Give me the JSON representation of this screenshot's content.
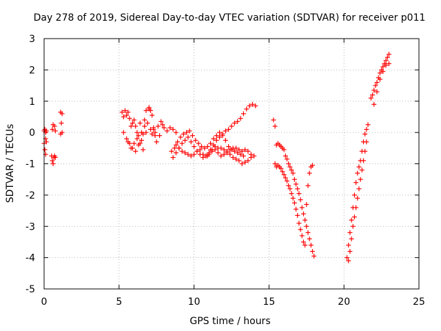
{
  "chart_data": {
    "type": "scatter",
    "title": "Day 278 of 2019, Sidereal Day-to-day VTEC variation (SDTVAR) for receiver p011",
    "xlabel": "GPS time / hours",
    "ylabel": "SDTVAR / TECUs",
    "xlim": [
      0,
      25
    ],
    "ylim": [
      -5,
      3
    ],
    "xticks": [
      "0",
      "5",
      "10",
      "15",
      "20",
      "25"
    ],
    "yticks": [
      "-5",
      "-4",
      "-3",
      "-2",
      "-1",
      "0",
      "1",
      "2",
      "3"
    ],
    "grid": true,
    "marker_color": "#ff0000",
    "marker": "plus",
    "series": [
      {
        "name": "SDTVAR",
        "x": [
          0.0,
          0.0,
          0.05,
          0.05,
          0.1,
          0.1,
          0.1,
          0.15,
          0.15,
          0.5,
          0.55,
          0.55,
          0.6,
          0.6,
          0.65,
          0.7,
          0.7,
          0.75,
          0.75,
          1.1,
          1.1,
          1.15,
          1.2,
          1.2,
          5.2,
          5.3,
          5.4,
          5.5,
          5.6,
          5.7,
          5.8,
          5.9,
          6.0,
          6.1,
          6.2,
          6.3,
          6.4,
          6.5,
          6.6,
          6.7,
          6.8,
          5.3,
          5.5,
          5.7,
          5.9,
          6.1,
          6.3,
          6.5,
          6.7,
          6.9,
          7.1,
          7.3,
          5.6,
          5.8,
          6.0,
          6.2,
          6.4,
          6.6,
          6.8,
          7.0,
          7.2,
          7.4,
          7.6,
          7.8,
          7.0,
          7.1,
          7.2,
          7.3,
          7.4,
          7.5,
          7.7,
          7.9,
          8.0,
          8.2,
          8.4,
          8.6,
          8.8,
          8.8,
          9.0,
          9.2,
          9.4,
          9.6,
          9.8,
          10.0,
          10.2,
          10.4,
          10.6,
          10.8,
          11.0,
          11.2,
          11.4,
          11.6,
          11.8,
          12.0,
          12.2,
          12.4,
          12.6,
          12.8,
          13.0,
          13.2,
          13.4,
          13.6,
          13.8,
          14.0,
          8.6,
          8.8,
          9.0,
          9.2,
          9.4,
          9.6,
          9.8,
          10.0,
          10.2,
          10.4,
          10.6,
          10.8,
          11.0,
          11.2,
          11.4,
          11.6,
          11.8,
          12.0,
          12.2,
          12.4,
          12.6,
          12.8,
          13.0,
          13.2,
          13.4,
          13.6,
          13.8,
          8.5,
          8.7,
          8.9,
          9.1,
          9.3,
          9.5,
          9.7,
          9.9,
          10.1,
          10.3,
          10.5,
          10.7,
          10.9,
          11.1,
          11.3,
          11.5,
          11.7,
          11.9,
          12.1,
          12.3,
          12.5,
          12.7,
          12.9,
          13.1,
          13.3,
          10.9,
          11.1,
          11.3,
          11.5,
          11.7,
          11.9,
          12.1,
          12.3,
          12.5,
          12.7,
          12.9,
          13.1,
          13.3,
          13.5,
          13.7,
          13.9,
          14.1,
          15.3,
          15.4,
          15.5,
          15.6,
          15.7,
          15.8,
          15.9,
          16.0,
          16.1,
          16.2,
          16.3,
          16.4,
          16.5,
          16.6,
          16.7,
          16.8,
          16.9,
          17.0,
          17.1,
          17.2,
          17.3,
          17.4,
          17.5,
          17.6,
          17.7,
          17.8,
          17.9,
          18.0,
          15.4,
          15.5,
          15.6,
          15.7,
          15.8,
          15.9,
          16.0,
          16.1,
          16.2,
          16.3,
          16.4,
          16.5,
          16.6,
          16.7,
          16.8,
          16.9,
          17.0,
          17.1,
          17.2,
          17.3,
          17.4,
          17.5,
          17.6,
          17.7,
          17.8,
          17.9,
          20.2,
          20.3,
          20.4,
          20.5,
          20.6,
          20.7,
          20.8,
          20.9,
          21.0,
          21.1,
          21.2,
          21.3,
          21.4,
          21.5,
          21.6,
          20.3,
          20.4,
          20.5,
          20.6,
          20.7,
          20.8,
          20.9,
          21.0,
          21.1,
          21.2,
          21.3,
          21.4,
          21.5,
          21.8,
          21.9,
          22.0,
          22.1,
          22.2,
          22.3,
          22.4,
          22.5,
          22.6,
          22.7,
          22.8,
          22.9,
          23.0,
          22.0,
          22.2,
          22.4,
          22.6,
          22.8,
          23.0
        ],
        "y": [
          0.05,
          -0.35,
          -0.55,
          0.1,
          -0.2,
          -0.7,
          0.0,
          -0.3,
          0.05,
          -0.75,
          -0.9,
          0.1,
          -1.0,
          0.25,
          -0.8,
          0.2,
          -0.75,
          0.05,
          -0.8,
          -0.05,
          0.65,
          0.3,
          0.6,
          0.0,
          0.65,
          0.5,
          0.7,
          0.55,
          0.65,
          0.45,
          0.2,
          0.3,
          0.4,
          0.2,
          0.0,
          -0.1,
          0.3,
          0.0,
          -0.05,
          0.2,
          0.0,
          0.0,
          -0.2,
          -0.35,
          -0.5,
          -0.6,
          -0.4,
          -0.25,
          0.4,
          0.3,
          0.1,
          0.15,
          -0.3,
          -0.5,
          -0.35,
          -0.2,
          -0.35,
          -0.55,
          0.7,
          0.75,
          -0.05,
          0.0,
          0.2,
          0.35,
          0.8,
          0.7,
          0.55,
          0.1,
          -0.1,
          -0.3,
          -0.1,
          0.25,
          0.15,
          0.05,
          0.15,
          0.1,
          0.0,
          -0.4,
          -0.5,
          -0.6,
          -0.65,
          -0.7,
          -0.75,
          -0.7,
          -0.6,
          -0.55,
          -0.7,
          -0.75,
          -0.7,
          -0.6,
          -0.55,
          -0.5,
          -0.5,
          -0.55,
          -0.6,
          -0.55,
          -0.5,
          -0.5,
          -0.55,
          -0.6,
          -0.55,
          -0.6,
          -0.7,
          -0.75,
          -0.8,
          -0.65,
          -0.5,
          -0.35,
          -0.25,
          -0.15,
          -0.3,
          -0.45,
          -0.6,
          -0.7,
          -0.8,
          -0.75,
          -0.65,
          -0.55,
          -0.45,
          -0.65,
          -0.75,
          -0.7,
          -0.65,
          -0.7,
          -0.8,
          -0.85,
          -0.9,
          -1.0,
          -0.95,
          -0.9,
          -0.8,
          -0.6,
          -0.5,
          -0.3,
          -0.15,
          -0.05,
          0.0,
          0.05,
          -0.1,
          -0.25,
          -0.35,
          -0.45,
          -0.5,
          -0.45,
          -0.35,
          -0.2,
          -0.1,
          0.0,
          -0.1,
          -0.25,
          -0.45,
          -0.55,
          -0.6,
          -0.65,
          -0.7,
          -0.75,
          -0.75,
          -0.55,
          -0.4,
          -0.25,
          -0.15,
          -0.05,
          0.05,
          0.1,
          0.2,
          0.3,
          0.35,
          0.45,
          0.6,
          0.75,
          0.85,
          0.9,
          0.85,
          0.4,
          0.2,
          -0.4,
          -0.35,
          -0.4,
          -0.45,
          -0.5,
          -0.55,
          -0.75,
          -0.85,
          -1.0,
          -1.1,
          -1.2,
          -1.3,
          -1.5,
          -1.65,
          -1.8,
          -1.95,
          -2.15,
          -2.4,
          -2.6,
          -2.8,
          -3.0,
          -3.2,
          -3.4,
          -3.6,
          -3.8,
          -3.95,
          -1.0,
          -1.1,
          -1.05,
          -1.1,
          -1.15,
          -1.25,
          -1.35,
          -1.45,
          -1.55,
          -1.7,
          -1.8,
          -1.95,
          -2.1,
          -2.25,
          -2.45,
          -2.65,
          -2.9,
          -3.1,
          -3.3,
          -3.5,
          -3.6,
          -2.3,
          -1.7,
          -1.3,
          -1.1,
          -1.05,
          -4.0,
          -3.6,
          -3.2,
          -2.8,
          -2.4,
          -2.0,
          -1.6,
          -1.3,
          -1.1,
          -0.9,
          -0.6,
          -0.3,
          -0.05,
          0.1,
          0.25,
          -4.1,
          -3.8,
          -3.4,
          -3.0,
          -2.7,
          -2.4,
          -2.1,
          -1.8,
          -1.5,
          -1.2,
          -0.9,
          -0.6,
          -0.3,
          1.1,
          1.2,
          1.35,
          1.5,
          1.6,
          1.75,
          1.9,
          2.0,
          2.1,
          2.2,
          2.3,
          2.4,
          2.5,
          0.9,
          1.3,
          1.7,
          1.95,
          2.15,
          2.2
        ]
      }
    ]
  }
}
